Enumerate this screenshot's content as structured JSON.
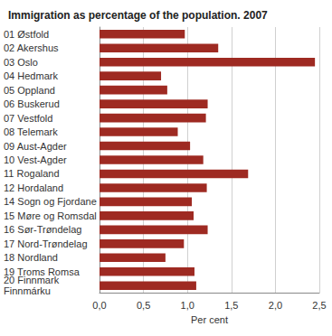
{
  "chart_data": {
    "type": "bar",
    "orientation": "horizontal",
    "title": "Immigration as percentage of the population. 2007",
    "x_label": "Per cent",
    "categories": [
      "01 Østfold",
      "02 Akershus",
      "03 Oslo",
      "04 Hedmark",
      "05 Oppland",
      "06 Buskerud",
      "07 Vestfold",
      "08 Telemark",
      "09 Aust-Agder",
      "10 Vest-Agder",
      "11 Rogaland",
      "12 Hordaland",
      "14 Sogn og Fjordane",
      "15 Møre og Romsdal",
      "16 Sør-Trøndelag",
      "17 Nord-Trøndelag",
      "18 Nordland",
      "19 Troms Romsa",
      "20 Finnmark\nFinnmárku"
    ],
    "values": [
      0.97,
      1.35,
      2.45,
      0.7,
      0.77,
      1.23,
      1.21,
      0.89,
      1.03,
      1.18,
      1.69,
      1.22,
      1.05,
      1.07,
      1.23,
      0.96,
      0.75,
      1.08,
      1.1
    ],
    "color": "#9e2a22",
    "xlim": [
      0,
      2.5
    ],
    "xticks": [
      {
        "value": 0,
        "label": "0,0"
      },
      {
        "value": 0.5,
        "label": "0,5"
      },
      {
        "value": 1,
        "label": "1,0"
      },
      {
        "value": 1.5,
        "label": "1,5"
      },
      {
        "value": 2,
        "label": "2,0"
      },
      {
        "value": 2.5,
        "label": "2,5"
      }
    ],
    "grid": true
  }
}
